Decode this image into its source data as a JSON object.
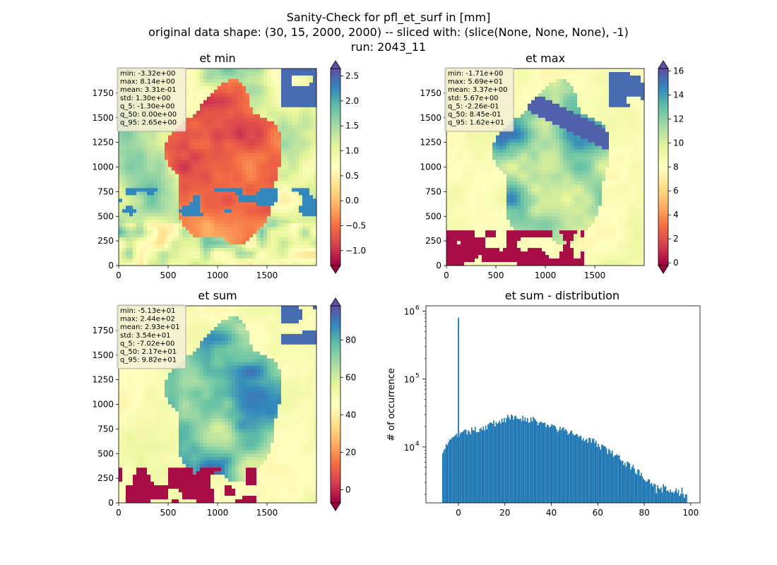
{
  "figure": {
    "suptitle_line1": "Sanity-Check for pfl_et_surf in [mm]",
    "suptitle_line2": "original data shape: (30, 15, 2000, 2000) -- sliced with: (slice(None, None, None), -1)",
    "suptitle_line3": "run: 2043_11"
  },
  "colors": {
    "colormap": "Spectral",
    "stops": [
      "#9e0142",
      "#d53e4f",
      "#f46d43",
      "#fdae61",
      "#fee08b",
      "#ffffbf",
      "#e6f598",
      "#abdda4",
      "#66c2a5",
      "#3288bd",
      "#5e4fa2"
    ],
    "hist_bar": "#1f77b4",
    "statbox_bg": "#f5f0d6"
  },
  "maps": [
    {
      "title": "et min",
      "xticks": [
        "0",
        "500",
        "1000",
        "1500"
      ],
      "yticks": [
        "0",
        "250",
        "500",
        "750",
        "1000",
        "1250",
        "1500",
        "1750"
      ],
      "stats": [
        "min: -3.32e+00",
        "max: 8.14e+00",
        "mean: 3.31e-01",
        "std: 1.30e+00",
        "q_5: -1.30e+00",
        "q_50: 0.00e+00",
        "q_95: 2.65e+00"
      ],
      "colorbar": {
        "vmin": -1.3,
        "vmax": 2.65,
        "ticks": [
          "−1.0",
          "−0.5",
          "0.0",
          "0.5",
          "1.0",
          "1.5",
          "2.0",
          "2.5"
        ],
        "tick_values": [
          -1.0,
          -0.5,
          0.0,
          0.5,
          1.0,
          1.5,
          2.0,
          2.5
        ]
      }
    },
    {
      "title": "et max",
      "xticks": [
        "0",
        "500",
        "1000",
        "1500"
      ],
      "yticks": [
        "0",
        "250",
        "500",
        "750",
        "1000",
        "1250",
        "1500",
        "1750"
      ],
      "stats": [
        "min: -1.71e+00",
        "max: 5.69e+01",
        "mean: 3.37e+00",
        "std: 5.67e+00",
        "q_5: -2.26e-01",
        "q_50: 8.45e-01",
        "q_95: 1.62e+01"
      ],
      "colorbar": {
        "vmin": -0.226,
        "vmax": 16.2,
        "ticks": [
          "0",
          "2",
          "4",
          "6",
          "8",
          "10",
          "12",
          "14",
          "16"
        ],
        "tick_values": [
          0,
          2,
          4,
          6,
          8,
          10,
          12,
          14,
          16
        ]
      }
    },
    {
      "title": "et sum",
      "xticks": [
        "0",
        "500",
        "1000",
        "1500"
      ],
      "yticks": [
        "0",
        "250",
        "500",
        "750",
        "1000",
        "1250",
        "1500",
        "1750"
      ],
      "stats": [
        "min: -5.13e+01",
        "max: 2.44e+02",
        "mean: 2.93e+01",
        "std: 3.54e+01",
        "q_5: -7.02e+00",
        "q_50: 2.17e+01",
        "q_95: 9.82e+01"
      ],
      "colorbar": {
        "vmin": -7.02,
        "vmax": 98.2,
        "ticks": [
          "0",
          "20",
          "40",
          "60",
          "80"
        ],
        "tick_values": [
          0,
          20,
          40,
          60,
          80
        ]
      }
    }
  ],
  "chart_data": {
    "type": "bar",
    "title": "et sum - distribution",
    "xlabel": "",
    "ylabel": "# of occurrence",
    "yscale": "log",
    "xlim": [
      -14,
      104
    ],
    "ylim": [
      1500,
      1200000
    ],
    "xticks": [
      "0",
      "20",
      "40",
      "60",
      "80",
      "100"
    ],
    "xtick_values": [
      0,
      20,
      40,
      60,
      80,
      100
    ],
    "yticks": [
      "10",
      "10",
      "10"
    ],
    "ytick_exponents": [
      "4",
      "5",
      "6"
    ],
    "ytick_values": [
      10000,
      100000,
      1000000
    ],
    "grid": false,
    "bin_start": -7.02,
    "bin_width": 0.5,
    "spike": {
      "x": 0,
      "value": 800000
    },
    "profile_x": [
      -7,
      -5,
      0,
      5,
      10,
      15,
      20,
      25,
      30,
      35,
      40,
      45,
      50,
      55,
      60,
      65,
      70,
      75,
      80,
      85,
      90,
      95,
      98
    ],
    "profile_y": [
      9000,
      11000,
      15000,
      17000,
      19000,
      22000,
      26000,
      28000,
      26000,
      23000,
      20000,
      17500,
      15500,
      13500,
      11000,
      8500,
      6500,
      5000,
      3600,
      2800,
      2400,
      2300,
      2200
    ]
  }
}
